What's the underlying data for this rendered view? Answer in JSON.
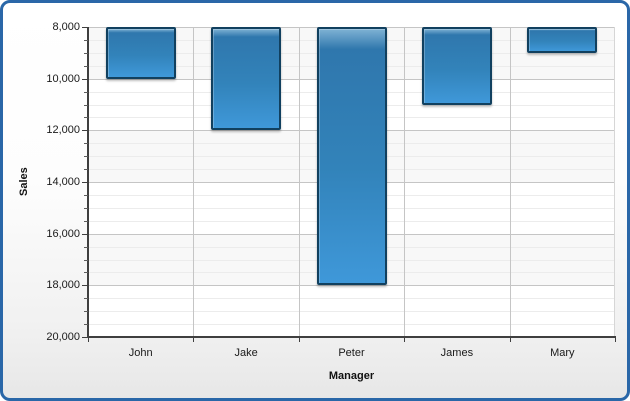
{
  "chart_data": {
    "type": "bar",
    "categories": [
      "John",
      "Jake",
      "Peter",
      "James",
      "Mary"
    ],
    "values": [
      10000,
      12000,
      18000,
      11000,
      9000
    ],
    "title": "",
    "xlabel": "Manager",
    "ylabel": "Sales",
    "ylim": [
      8000,
      20000
    ],
    "y_axis_inverted": true,
    "bars_anchored_at_top_value": 8000,
    "y_major_step": 2000,
    "y_minor_step": 500,
    "y_tick_labels": [
      "8,000",
      "10,000",
      "12,000",
      "14,000",
      "16,000",
      "18,000",
      "20,000"
    ],
    "legend_position": "none",
    "grid": "horizontal major + minor, vertical category separators, interlaced bands",
    "colors": {
      "bar_fill_top": "#2f77ad",
      "bar_fill_bottom": "#3f98d9",
      "bar_border": "#11405f",
      "frame_border": "#2a67a8",
      "major_gridline": "#c5c5c5",
      "minor_gridline": "#ececec",
      "interlace_band": "#f8f8f8",
      "axis_line": "#3f3f3f"
    }
  }
}
